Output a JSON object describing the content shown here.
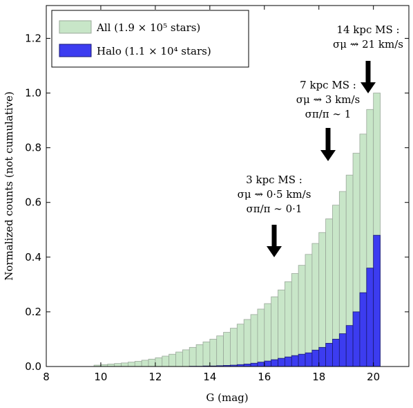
{
  "chart_data": {
    "type": "histogram",
    "xlabel": "G (mag)",
    "ylabel": "Normalized counts (not cumulative)",
    "bins": [
      9.75,
      10,
      10.25,
      10.5,
      10.75,
      11,
      11.25,
      11.5,
      11.75,
      12,
      12.25,
      12.5,
      12.75,
      13,
      13.25,
      13.5,
      13.75,
      14,
      14.25,
      14.5,
      14.75,
      15,
      15.25,
      15.5,
      15.75,
      16,
      16.25,
      16.5,
      16.75,
      17,
      17.25,
      17.5,
      17.75,
      18,
      18.25,
      18.5,
      18.75,
      19,
      19.25,
      19.5,
      19.75,
      20,
      20.25
    ],
    "series": [
      {
        "name": "All (1.9 × 10⁵ stars)",
        "color": "#c8e6c8",
        "values": [
          0.005,
          0.007,
          0.009,
          0.011,
          0.013,
          0.016,
          0.019,
          0.023,
          0.027,
          0.032,
          0.038,
          0.045,
          0.053,
          0.061,
          0.07,
          0.08,
          0.09,
          0.1,
          0.112,
          0.125,
          0.14,
          0.155,
          0.172,
          0.19,
          0.21,
          0.23,
          0.255,
          0.28,
          0.31,
          0.34,
          0.37,
          0.41,
          0.45,
          0.49,
          0.54,
          0.59,
          0.64,
          0.7,
          0.78,
          0.85,
          0.94,
          1.0
        ]
      },
      {
        "name": "Halo (1.1 × 10⁴ stars)",
        "color": "#3c3cf0",
        "values": [
          0,
          0,
          0,
          0,
          0,
          0,
          0,
          0,
          0,
          0,
          0,
          0,
          0,
          0,
          0.001,
          0.001,
          0.002,
          0.002,
          0.003,
          0.004,
          0.005,
          0.007,
          0.009,
          0.012,
          0.016,
          0.02,
          0.025,
          0.03,
          0.035,
          0.04,
          0.045,
          0.05,
          0.06,
          0.07,
          0.085,
          0.1,
          0.12,
          0.15,
          0.2,
          0.27,
          0.36,
          0.48
        ]
      }
    ],
    "xlim": [
      8,
      21.3
    ],
    "ylim": [
      0,
      1.32
    ],
    "xticks": [
      8,
      10,
      12,
      14,
      16,
      18,
      20
    ],
    "yticks": [
      {
        "value": 0,
        "label": "0.0"
      },
      {
        "value": 0.2,
        "label": "0.2"
      },
      {
        "value": 0.4,
        "label": "0.4"
      },
      {
        "value": 0.6,
        "label": "0.6"
      },
      {
        "value": 0.8,
        "label": "0.8"
      },
      {
        "value": 1.0,
        "label": "1.0"
      },
      {
        "value": 1.2,
        "label": "1.2"
      }
    ],
    "legend": "upper left",
    "annotations": [
      [
        "3 kpc MS :",
        "σμ ⇝ 0·5 km/s",
        "σπ/π ∼ 0·1"
      ],
      [
        "7 kpc MS :",
        "σμ ⇝ 3 km/s",
        "σπ/π ∼ 1"
      ],
      [
        "14 kpc MS :",
        "σμ ⇝ 21 km/s"
      ]
    ]
  }
}
